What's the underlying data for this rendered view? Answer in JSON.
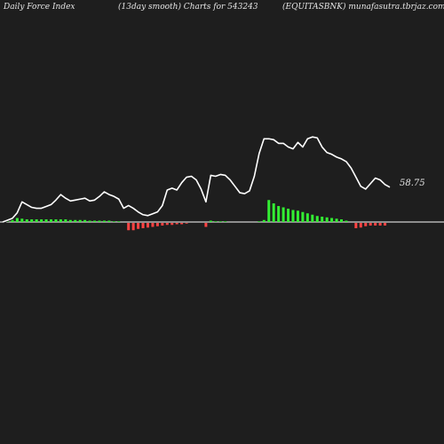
{
  "header": {
    "left": "Daily Force  Index",
    "center": "(13day smooth) Charts for 543243",
    "right": "(EQUITASBNK) munafasutra.tbrjaz.com"
  },
  "colors": {
    "background": "#1e1e1e",
    "line": "#ffffff",
    "baseline": "#ffffff",
    "positive_bar": "#33ee33",
    "negative_bar": "#ff4444",
    "label": "#e6e6e6"
  },
  "chart_data": {
    "type": "line",
    "title": "",
    "last_value_label": "58.75",
    "y_zero": 0,
    "grid": false,
    "legend": "none",
    "series": [
      {
        "kind": "line",
        "values": [
          0,
          2,
          4,
          10,
          22,
          19,
          16,
          15,
          15,
          17,
          19,
          24,
          30,
          26,
          23,
          24,
          25,
          26,
          23,
          24,
          28,
          33,
          30,
          28,
          25,
          15,
          18,
          15,
          11,
          8,
          7,
          9,
          11,
          18,
          35,
          37,
          35,
          43,
          49,
          50,
          46,
          36,
          22,
          51,
          50,
          52,
          51,
          46,
          39,
          32,
          31,
          34,
          50,
          75,
          91,
          91,
          90,
          86,
          86,
          82,
          80,
          87,
          82,
          91,
          93,
          92,
          82,
          76,
          74,
          71,
          69,
          66,
          59,
          49,
          39,
          36,
          42,
          48,
          46,
          41,
          38
        ]
      },
      {
        "kind": "bar",
        "values": [
          0,
          1,
          3,
          6,
          5,
          4,
          4,
          4,
          4,
          4,
          4,
          4,
          4,
          4,
          3,
          3,
          3,
          3,
          2,
          2,
          2,
          2,
          2,
          1,
          1,
          0,
          -11,
          -11,
          -9,
          -8,
          -7,
          -6,
          -5,
          -4,
          -3,
          -3,
          -2,
          -2,
          -1,
          0,
          0,
          0,
          -6,
          2,
          1,
          1,
          1,
          0,
          0,
          0,
          0,
          0,
          0,
          1,
          3,
          33,
          28,
          24,
          22,
          20,
          18,
          17,
          15,
          13,
          11,
          9,
          8,
          7,
          6,
          5,
          4,
          2,
          0,
          -8,
          -7,
          -5,
          -4,
          -4,
          -4,
          -4,
          0
        ]
      }
    ]
  }
}
